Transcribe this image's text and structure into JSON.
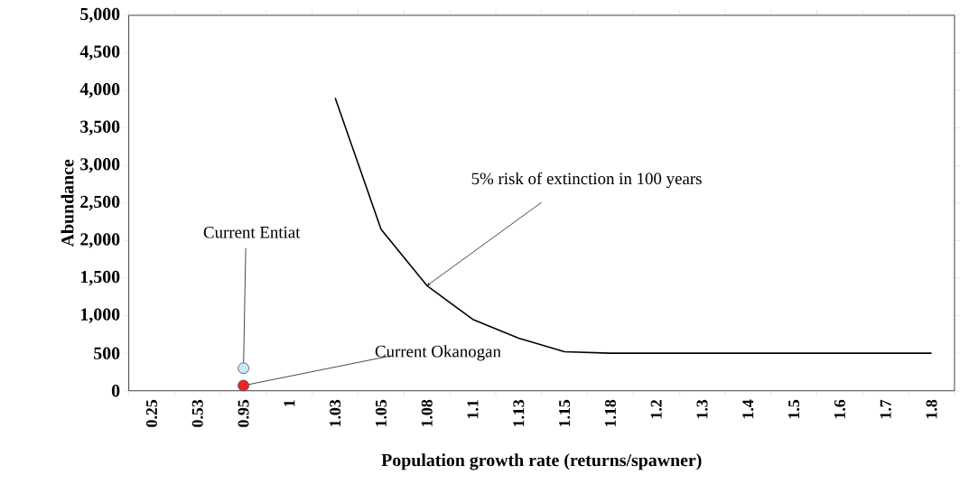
{
  "chart_data": {
    "type": "line",
    "xlabel": "Population growth rate (returns/spawner)",
    "ylabel": "Abundance",
    "categories": [
      "0.25",
      "0.53",
      "0.95",
      "1",
      "1.03",
      "1.05",
      "1.08",
      "1.1",
      "1.13",
      "1.15",
      "1.18",
      "1.2",
      "1.3",
      "1.4",
      "1.5",
      "1.6",
      "1.7",
      "1.8"
    ],
    "series": [
      {
        "type": "line",
        "color": "#000000",
        "marker": "none",
        "values": [
          null,
          null,
          null,
          null,
          3900,
          2150,
          1400,
          950,
          700,
          520,
          500,
          500,
          500,
          500,
          500,
          500,
          500,
          500
        ]
      },
      {
        "type": "scatter",
        "color": "#cce6f5",
        "x": [
          "0.95"
        ],
        "values": [
          300
        ]
      },
      {
        "type": "scatter",
        "color": "#ee2222",
        "x": [
          "0.95"
        ],
        "values": [
          70
        ]
      }
    ],
    "line_style": "solid",
    "ylim": [
      0,
      5000
    ],
    "yticks": [
      0,
      500,
      {
        "value": 1000,
        "label": "1,000"
      },
      {
        "value": 1500,
        "label": "1,500"
      },
      {
        "value": 2000,
        "label": "2,000"
      },
      {
        "value": 2500,
        "label": "2,500"
      },
      {
        "value": 3000,
        "label": "3,000"
      },
      {
        "value": 3500,
        "label": "3,500"
      },
      {
        "value": 4000,
        "label": "4,000"
      },
      {
        "value": 4500,
        "label": "4,500"
      },
      {
        "value": 5000,
        "label": "5,000"
      }
    ],
    "annotations": [
      {
        "text": "5% risk of extinction in 100 years",
        "x": "1.08",
        "y": 1400
      },
      {
        "text": "Current Entiat",
        "x": "0.95",
        "y": 300
      },
      {
        "text": "Current Okanogan",
        "x": "0.95",
        "y": 70
      }
    ]
  }
}
